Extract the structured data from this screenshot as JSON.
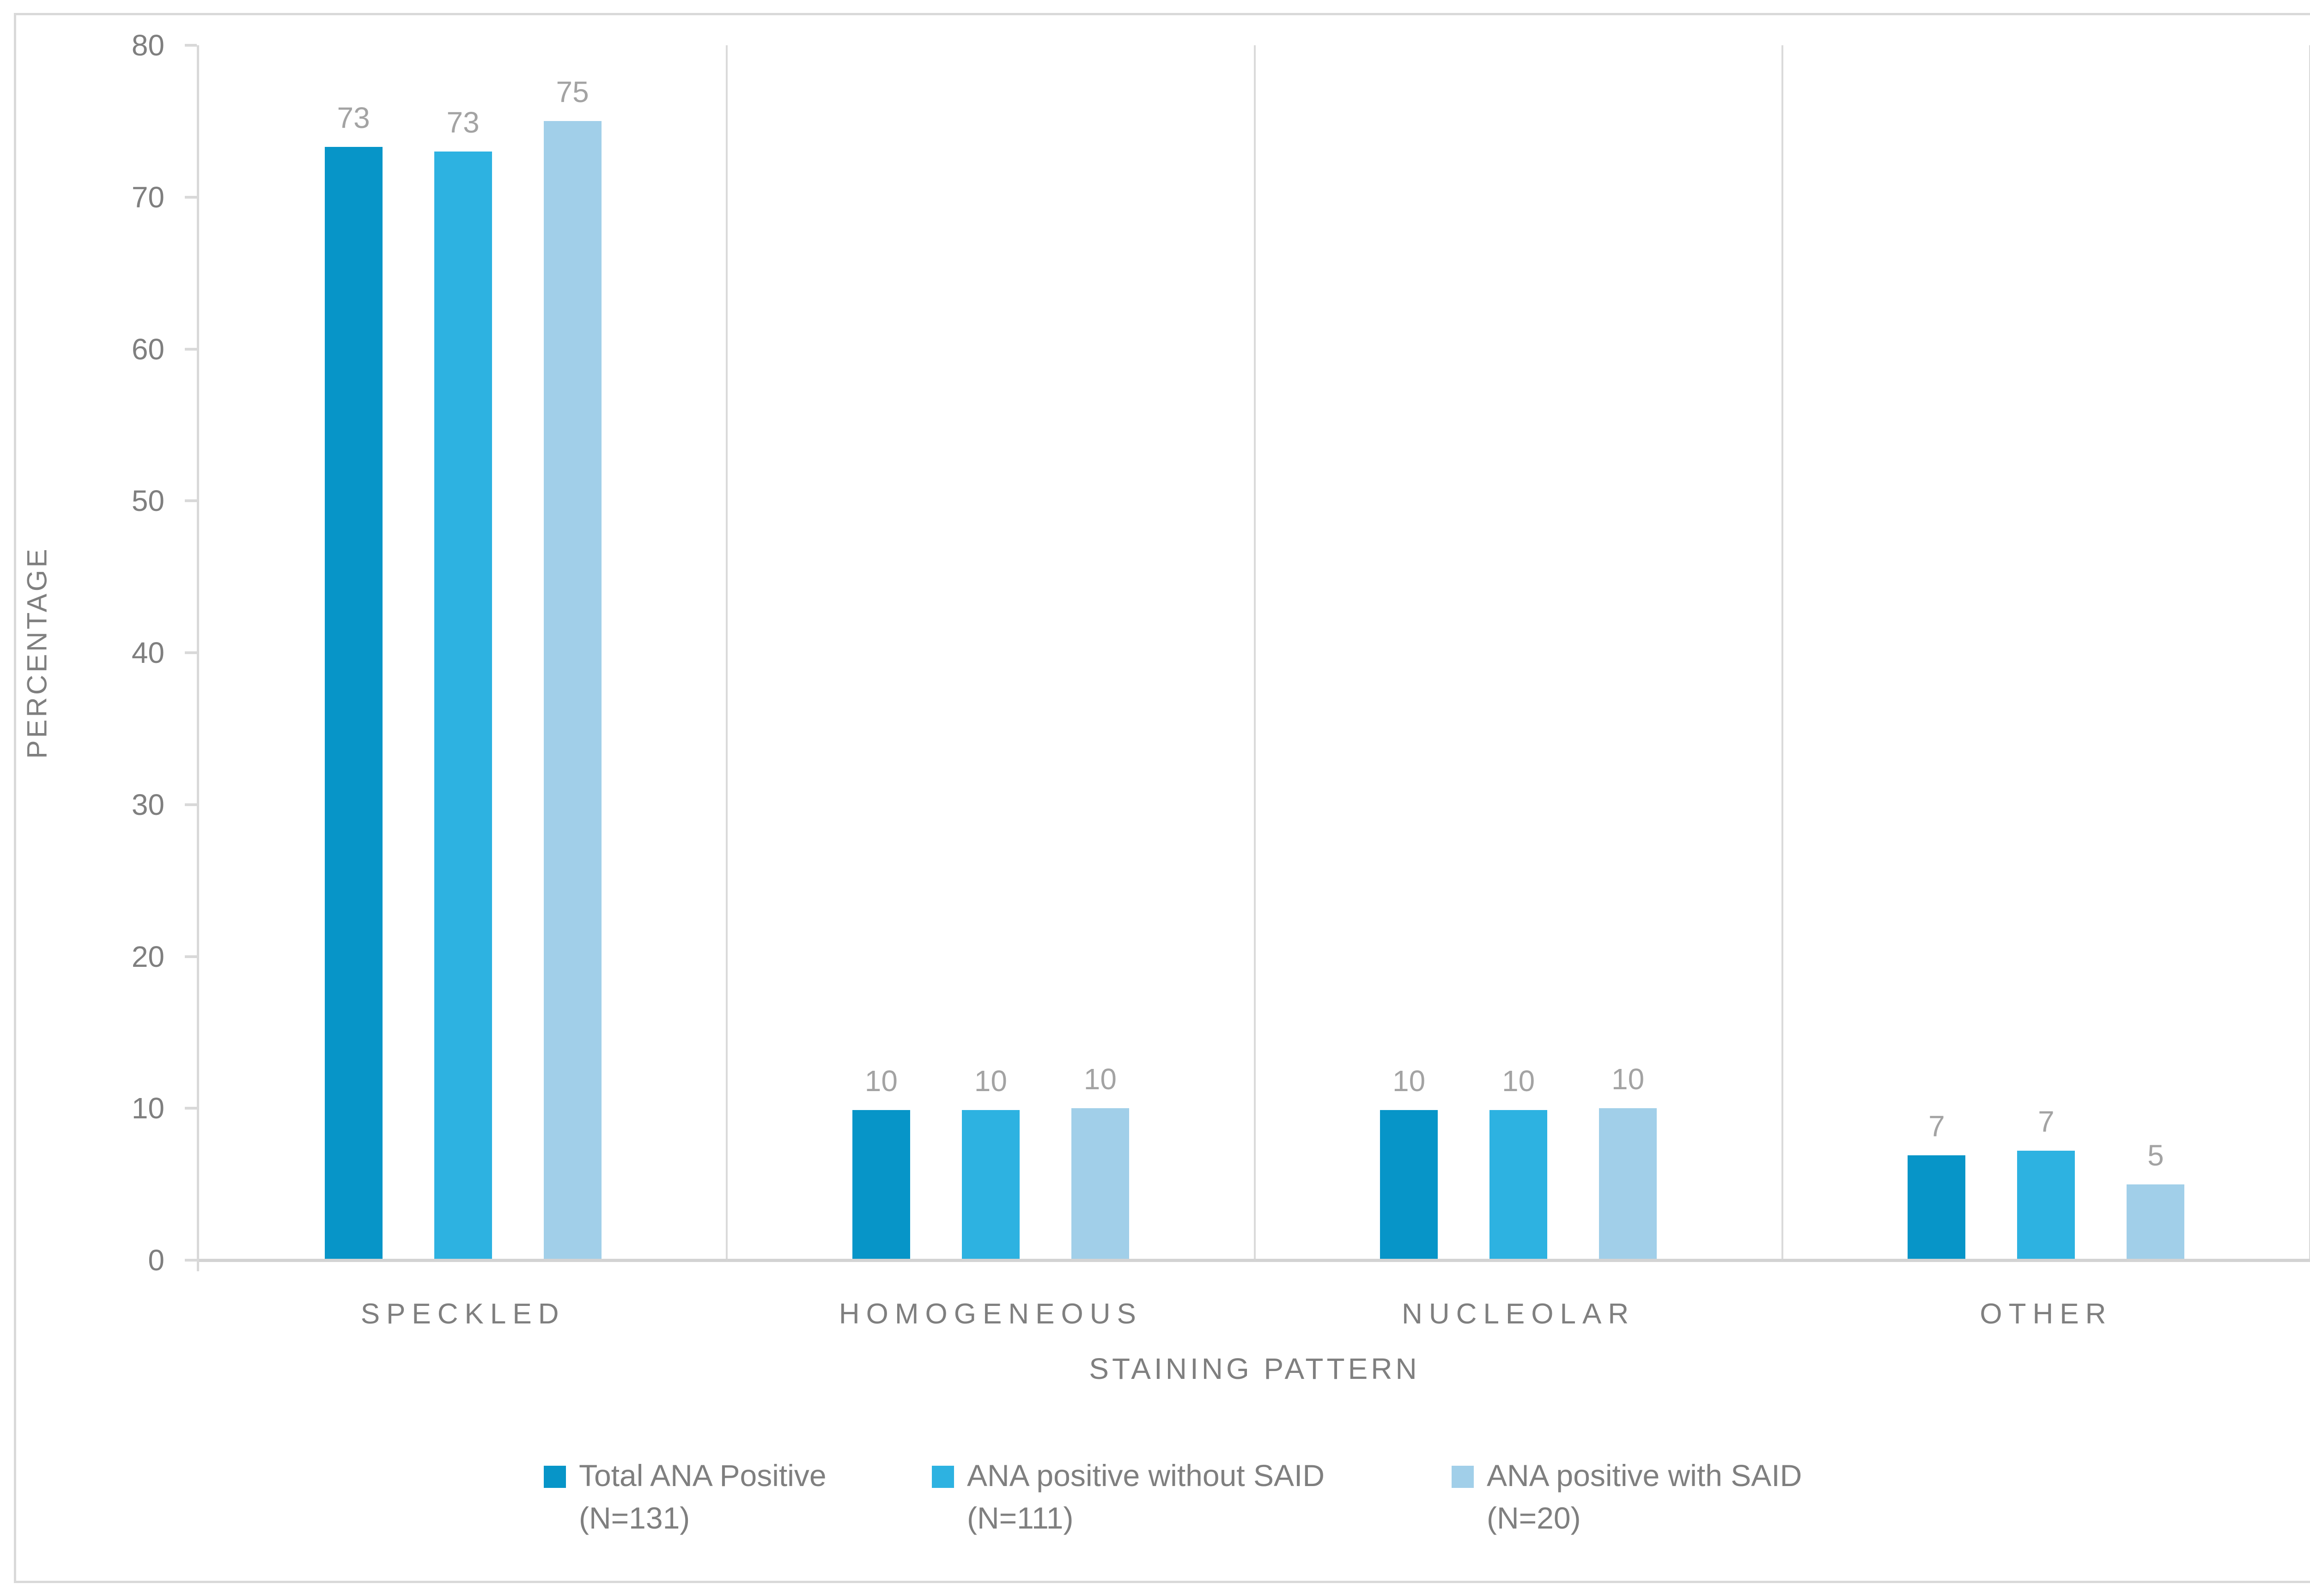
{
  "colors": {
    "background": "#FFFFFF",
    "border": "#D9D9D9",
    "axis_line": "#D9D9D9",
    "baseline": "#D3D3D3",
    "separator": "#DADADA",
    "tick_label": "#7F7F7F",
    "data_label": "#A3A3A3",
    "text": "#7F7F7F",
    "series1": "#0795C8",
    "series2": "#2DB2E1",
    "series3": "#A1CFE9"
  },
  "chart_data": {
    "type": "bar",
    "title": "",
    "xlabel": "STAINING PATTERN",
    "ylabel": "PERCENTAGE",
    "categories": [
      "SPECKLED",
      "HOMOGENEOUS",
      "NUCLEOLAR",
      "OTHER"
    ],
    "series": [
      {
        "name": "Total ANA Positive",
        "n_label": "(N=131)",
        "color": "#0795C8",
        "values": [
          73,
          10,
          10,
          7
        ],
        "values_precise": [
          73.3,
          9.9,
          9.9,
          6.9
        ],
        "labels": [
          "73",
          "10",
          "10",
          "7"
        ]
      },
      {
        "name": "ANA positive without SAID",
        "n_label": "(N=111)",
        "color": "#2DB2E1",
        "values": [
          73,
          10,
          10,
          7
        ],
        "values_precise": [
          73.0,
          9.9,
          9.9,
          7.2
        ],
        "labels": [
          "73",
          "10",
          "10",
          "7"
        ]
      },
      {
        "name": "ANA positive with SAID",
        "n_label": "(N=20)",
        "color": "#A1CFE9",
        "values": [
          75,
          10,
          10,
          5
        ],
        "values_precise": [
          75,
          10,
          10,
          5
        ],
        "labels": [
          "75",
          "10",
          "10",
          "5"
        ]
      }
    ],
    "ylim": [
      0,
      80
    ],
    "yticks": [
      0,
      10,
      20,
      30,
      40,
      50,
      60,
      70,
      80
    ],
    "grid": "vertical category separators only",
    "legend_position": "bottom-center"
  }
}
